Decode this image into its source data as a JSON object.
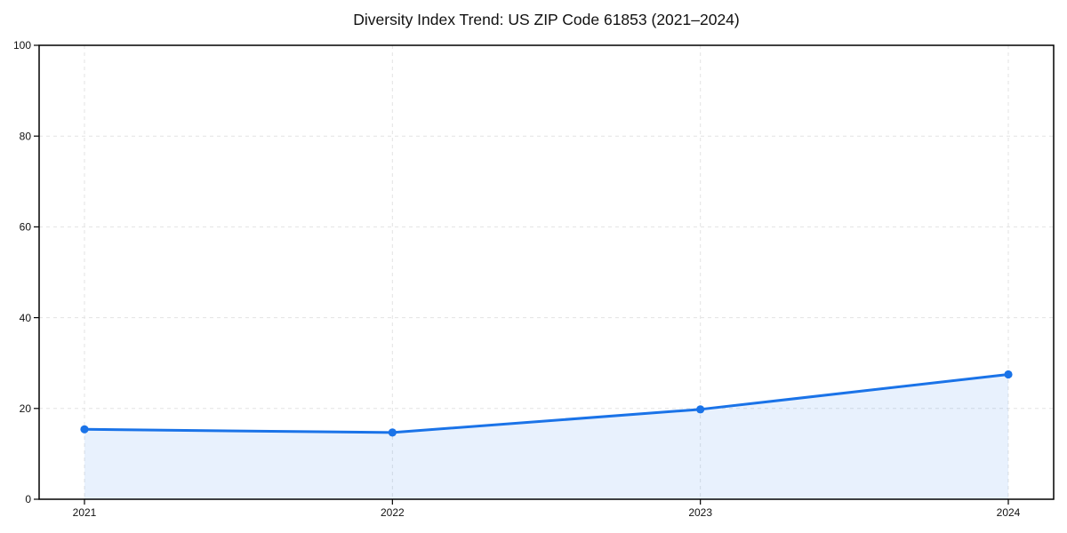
{
  "chart_data": {
    "type": "line",
    "title": "Diversity Index Trend: US ZIP Code 61853 (2021–2024)",
    "series_name": "Diversity Index",
    "categories": [
      "2021",
      "2022",
      "2023",
      "2024"
    ],
    "values": [
      15.4,
      14.7,
      19.8,
      27.5
    ],
    "xlabel": "",
    "ylabel": "",
    "ylim": [
      0,
      100
    ],
    "yticks": [
      0,
      20,
      40,
      60,
      80,
      100
    ],
    "grid": "dashed-both-axes",
    "legend": "none",
    "area_fill": true,
    "marker": "circle",
    "colors": {
      "line": "#1a73e8",
      "marker": "#1a73e8",
      "area_fill": "rgba(26,115,232,0.10)",
      "gridline": "#e3e3e3",
      "spine": "#000000",
      "tick_text": "#111111",
      "background": "#ffffff"
    }
  }
}
